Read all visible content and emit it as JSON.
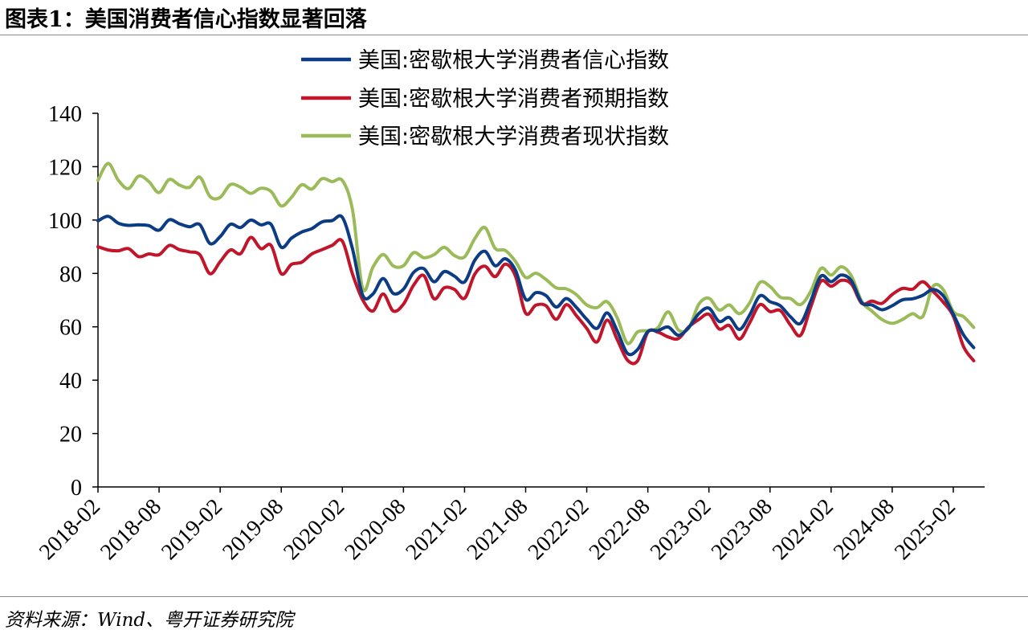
{
  "figure": {
    "title": "图表1：美国消费者信心指数显著回落",
    "source": "资料来源：Wind、粤开证券研究院"
  },
  "chart_data": {
    "type": "line",
    "title": "",
    "xlabel": "",
    "ylabel": "",
    "ylim": [
      0,
      140
    ],
    "yticks": [
      0,
      20,
      40,
      60,
      80,
      100,
      120,
      140
    ],
    "xlim": [
      "2018-02",
      "2025-04"
    ],
    "xticks": [
      "2018-02",
      "2018-08",
      "2019-02",
      "2019-08",
      "2020-02",
      "2020-08",
      "2021-02",
      "2021-08",
      "2022-02",
      "2022-08",
      "2023-02",
      "2023-08",
      "2024-02",
      "2024-08",
      "2025-02"
    ],
    "grid": false,
    "legend_position": "top-center",
    "series": [
      {
        "name": "美国:密歇根大学消费者信心指数",
        "color": "#0c3c84",
        "points": [
          [
            "2018-02",
            99.7
          ],
          [
            "2018-03",
            101.4
          ],
          [
            "2018-04",
            98.8
          ],
          [
            "2018-05",
            98.0
          ],
          [
            "2018-06",
            98.2
          ],
          [
            "2018-07",
            97.9
          ],
          [
            "2018-08",
            96.2
          ],
          [
            "2018-09",
            100.1
          ],
          [
            "2018-10",
            98.6
          ],
          [
            "2018-11",
            97.5
          ],
          [
            "2018-12",
            98.3
          ],
          [
            "2019-01",
            91.2
          ],
          [
            "2019-02",
            93.8
          ],
          [
            "2019-03",
            98.4
          ],
          [
            "2019-04",
            97.2
          ],
          [
            "2019-05",
            100.0
          ],
          [
            "2019-06",
            98.2
          ],
          [
            "2019-07",
            98.4
          ],
          [
            "2019-08",
            89.8
          ],
          [
            "2019-09",
            93.2
          ],
          [
            "2019-10",
            95.5
          ],
          [
            "2019-11",
            96.8
          ],
          [
            "2019-12",
            99.3
          ],
          [
            "2020-01",
            99.8
          ],
          [
            "2020-02",
            101.0
          ],
          [
            "2020-03",
            89.1
          ],
          [
            "2020-04",
            71.8
          ],
          [
            "2020-05",
            72.3
          ],
          [
            "2020-06",
            78.1
          ],
          [
            "2020-07",
            72.5
          ],
          [
            "2020-08",
            74.1
          ],
          [
            "2020-09",
            80.4
          ],
          [
            "2020-10",
            81.8
          ],
          [
            "2020-11",
            76.9
          ],
          [
            "2020-12",
            80.7
          ],
          [
            "2021-01",
            79.0
          ],
          [
            "2021-02",
            76.8
          ],
          [
            "2021-03",
            84.9
          ],
          [
            "2021-04",
            88.3
          ],
          [
            "2021-05",
            82.9
          ],
          [
            "2021-06",
            85.5
          ],
          [
            "2021-07",
            81.2
          ],
          [
            "2021-08",
            70.3
          ],
          [
            "2021-09",
            72.8
          ],
          [
            "2021-10",
            71.7
          ],
          [
            "2021-11",
            67.4
          ],
          [
            "2021-12",
            70.6
          ],
          [
            "2022-01",
            67.2
          ],
          [
            "2022-02",
            62.8
          ],
          [
            "2022-03",
            59.4
          ],
          [
            "2022-04",
            65.2
          ],
          [
            "2022-05",
            58.4
          ],
          [
            "2022-06",
            50.0
          ],
          [
            "2022-07",
            51.5
          ],
          [
            "2022-08",
            58.2
          ],
          [
            "2022-09",
            58.6
          ],
          [
            "2022-10",
            59.9
          ],
          [
            "2022-11",
            56.8
          ],
          [
            "2022-12",
            59.7
          ],
          [
            "2023-01",
            64.9
          ],
          [
            "2023-02",
            67.0
          ],
          [
            "2023-03",
            62.0
          ],
          [
            "2023-04",
            63.5
          ],
          [
            "2023-05",
            59.0
          ],
          [
            "2023-06",
            64.4
          ],
          [
            "2023-07",
            71.6
          ],
          [
            "2023-08",
            69.4
          ],
          [
            "2023-09",
            67.9
          ],
          [
            "2023-10",
            63.8
          ],
          [
            "2023-11",
            61.3
          ],
          [
            "2023-12",
            69.7
          ],
          [
            "2024-01",
            79.0
          ],
          [
            "2024-02",
            76.9
          ],
          [
            "2024-03",
            79.4
          ],
          [
            "2024-04",
            77.2
          ],
          [
            "2024-05",
            69.1
          ],
          [
            "2024-06",
            68.2
          ],
          [
            "2024-07",
            66.4
          ],
          [
            "2024-08",
            67.9
          ],
          [
            "2024-09",
            70.1
          ],
          [
            "2024-10",
            70.5
          ],
          [
            "2024-11",
            71.8
          ],
          [
            "2024-12",
            74.0
          ],
          [
            "2025-01",
            71.7
          ],
          [
            "2025-02",
            64.7
          ],
          [
            "2025-03",
            57.0
          ],
          [
            "2025-04",
            52.2
          ]
        ]
      },
      {
        "name": "美国:密歇根大学消费者预期指数",
        "color": "#c0152a",
        "points": [
          [
            "2018-02",
            90.0
          ],
          [
            "2018-03",
            88.8
          ],
          [
            "2018-04",
            88.5
          ],
          [
            "2018-05",
            89.3
          ],
          [
            "2018-06",
            86.3
          ],
          [
            "2018-07",
            87.3
          ],
          [
            "2018-08",
            87.0
          ],
          [
            "2018-09",
            90.5
          ],
          [
            "2018-10",
            88.9
          ],
          [
            "2018-11",
            88.1
          ],
          [
            "2018-12",
            87.0
          ],
          [
            "2019-01",
            79.9
          ],
          [
            "2019-02",
            84.4
          ],
          [
            "2019-03",
            88.8
          ],
          [
            "2019-04",
            87.4
          ],
          [
            "2019-05",
            93.5
          ],
          [
            "2019-06",
            89.3
          ],
          [
            "2019-07",
            90.5
          ],
          [
            "2019-08",
            79.9
          ],
          [
            "2019-09",
            83.4
          ],
          [
            "2019-10",
            84.2
          ],
          [
            "2019-11",
            87.3
          ],
          [
            "2019-12",
            88.9
          ],
          [
            "2020-01",
            90.5
          ],
          [
            "2020-02",
            92.1
          ],
          [
            "2020-03",
            79.7
          ],
          [
            "2020-04",
            70.1
          ],
          [
            "2020-05",
            65.9
          ],
          [
            "2020-06",
            72.3
          ],
          [
            "2020-07",
            65.9
          ],
          [
            "2020-08",
            68.5
          ],
          [
            "2020-09",
            75.6
          ],
          [
            "2020-10",
            79.2
          ],
          [
            "2020-11",
            70.5
          ],
          [
            "2020-12",
            74.6
          ],
          [
            "2021-01",
            74.0
          ],
          [
            "2021-02",
            70.7
          ],
          [
            "2021-03",
            79.7
          ],
          [
            "2021-04",
            82.7
          ],
          [
            "2021-05",
            78.8
          ],
          [
            "2021-06",
            83.5
          ],
          [
            "2021-07",
            79.0
          ],
          [
            "2021-08",
            65.1
          ],
          [
            "2021-09",
            68.1
          ],
          [
            "2021-10",
            67.9
          ],
          [
            "2021-11",
            62.8
          ],
          [
            "2021-12",
            68.3
          ],
          [
            "2022-01",
            64.1
          ],
          [
            "2022-02",
            59.4
          ],
          [
            "2022-03",
            54.3
          ],
          [
            "2022-04",
            62.5
          ],
          [
            "2022-05",
            55.2
          ],
          [
            "2022-06",
            47.5
          ],
          [
            "2022-07",
            47.3
          ],
          [
            "2022-08",
            58.0
          ],
          [
            "2022-09",
            58.0
          ],
          [
            "2022-10",
            56.2
          ],
          [
            "2022-11",
            55.6
          ],
          [
            "2022-12",
            59.9
          ],
          [
            "2023-01",
            62.7
          ],
          [
            "2023-02",
            64.7
          ],
          [
            "2023-03",
            59.2
          ],
          [
            "2023-04",
            60.5
          ],
          [
            "2023-05",
            55.4
          ],
          [
            "2023-06",
            61.5
          ],
          [
            "2023-07",
            68.3
          ],
          [
            "2023-08",
            65.7
          ],
          [
            "2023-09",
            66.1
          ],
          [
            "2023-10",
            60.7
          ],
          [
            "2023-11",
            56.8
          ],
          [
            "2023-12",
            67.4
          ],
          [
            "2024-01",
            77.1
          ],
          [
            "2024-02",
            75.2
          ],
          [
            "2024-03",
            77.4
          ],
          [
            "2024-04",
            76.0
          ],
          [
            "2024-05",
            68.8
          ],
          [
            "2024-06",
            69.6
          ],
          [
            "2024-07",
            68.8
          ],
          [
            "2024-08",
            72.1
          ],
          [
            "2024-09",
            74.4
          ],
          [
            "2024-10",
            74.1
          ],
          [
            "2024-11",
            76.9
          ],
          [
            "2024-12",
            73.3
          ],
          [
            "2025-01",
            69.3
          ],
          [
            "2025-02",
            64.0
          ],
          [
            "2025-03",
            52.6
          ],
          [
            "2025-04",
            47.3
          ]
        ]
      },
      {
        "name": "美国:密歇根大学消费者现状指数",
        "color": "#9bbb59",
        "points": [
          [
            "2018-02",
            114.9
          ],
          [
            "2018-03",
            121.2
          ],
          [
            "2018-04",
            114.9
          ],
          [
            "2018-05",
            111.8
          ],
          [
            "2018-06",
            116.5
          ],
          [
            "2018-07",
            114.4
          ],
          [
            "2018-08",
            110.3
          ],
          [
            "2018-09",
            115.2
          ],
          [
            "2018-10",
            113.1
          ],
          [
            "2018-11",
            112.3
          ],
          [
            "2018-12",
            116.1
          ],
          [
            "2019-01",
            108.8
          ],
          [
            "2019-02",
            108.5
          ],
          [
            "2019-03",
            113.3
          ],
          [
            "2019-04",
            112.3
          ],
          [
            "2019-05",
            110.0
          ],
          [
            "2019-06",
            111.9
          ],
          [
            "2019-07",
            110.7
          ],
          [
            "2019-08",
            105.3
          ],
          [
            "2019-09",
            108.5
          ],
          [
            "2019-10",
            113.2
          ],
          [
            "2019-11",
            111.6
          ],
          [
            "2019-12",
            115.5
          ],
          [
            "2020-01",
            114.4
          ],
          [
            "2020-02",
            114.8
          ],
          [
            "2020-03",
            103.7
          ],
          [
            "2020-04",
            74.3
          ],
          [
            "2020-05",
            82.3
          ],
          [
            "2020-06",
            87.1
          ],
          [
            "2020-07",
            82.8
          ],
          [
            "2020-08",
            82.9
          ],
          [
            "2020-09",
            87.8
          ],
          [
            "2020-10",
            85.9
          ],
          [
            "2020-11",
            87.0
          ],
          [
            "2020-12",
            89.8
          ],
          [
            "2021-01",
            86.7
          ],
          [
            "2021-02",
            86.2
          ],
          [
            "2021-03",
            93.0
          ],
          [
            "2021-04",
            97.2
          ],
          [
            "2021-05",
            89.4
          ],
          [
            "2021-06",
            88.6
          ],
          [
            "2021-07",
            84.5
          ],
          [
            "2021-08",
            78.5
          ],
          [
            "2021-09",
            80.1
          ],
          [
            "2021-10",
            77.7
          ],
          [
            "2021-11",
            74.6
          ],
          [
            "2021-12",
            74.2
          ],
          [
            "2022-01",
            72.0
          ],
          [
            "2022-02",
            68.2
          ],
          [
            "2022-03",
            67.2
          ],
          [
            "2022-04",
            69.4
          ],
          [
            "2022-05",
            63.3
          ],
          [
            "2022-06",
            53.8
          ],
          [
            "2022-07",
            58.1
          ],
          [
            "2022-08",
            58.6
          ],
          [
            "2022-09",
            59.7
          ],
          [
            "2022-10",
            65.6
          ],
          [
            "2022-11",
            58.8
          ],
          [
            "2022-12",
            59.4
          ],
          [
            "2023-01",
            68.4
          ],
          [
            "2023-02",
            70.7
          ],
          [
            "2023-03",
            66.3
          ],
          [
            "2023-04",
            68.2
          ],
          [
            "2023-05",
            64.9
          ],
          [
            "2023-06",
            69.0
          ],
          [
            "2023-07",
            76.6
          ],
          [
            "2023-08",
            75.1
          ],
          [
            "2023-09",
            71.1
          ],
          [
            "2023-10",
            70.6
          ],
          [
            "2023-11",
            68.3
          ],
          [
            "2023-12",
            73.3
          ],
          [
            "2024-01",
            81.9
          ],
          [
            "2024-02",
            79.4
          ],
          [
            "2024-03",
            82.5
          ],
          [
            "2024-04",
            79.0
          ],
          [
            "2024-05",
            69.6
          ],
          [
            "2024-06",
            65.9
          ],
          [
            "2024-07",
            62.7
          ],
          [
            "2024-08",
            61.3
          ],
          [
            "2024-09",
            62.7
          ],
          [
            "2024-10",
            64.9
          ],
          [
            "2024-11",
            63.9
          ],
          [
            "2024-12",
            75.1
          ],
          [
            "2025-01",
            74.0
          ],
          [
            "2025-02",
            65.7
          ],
          [
            "2025-03",
            63.8
          ],
          [
            "2025-04",
            59.8
          ]
        ]
      }
    ]
  }
}
